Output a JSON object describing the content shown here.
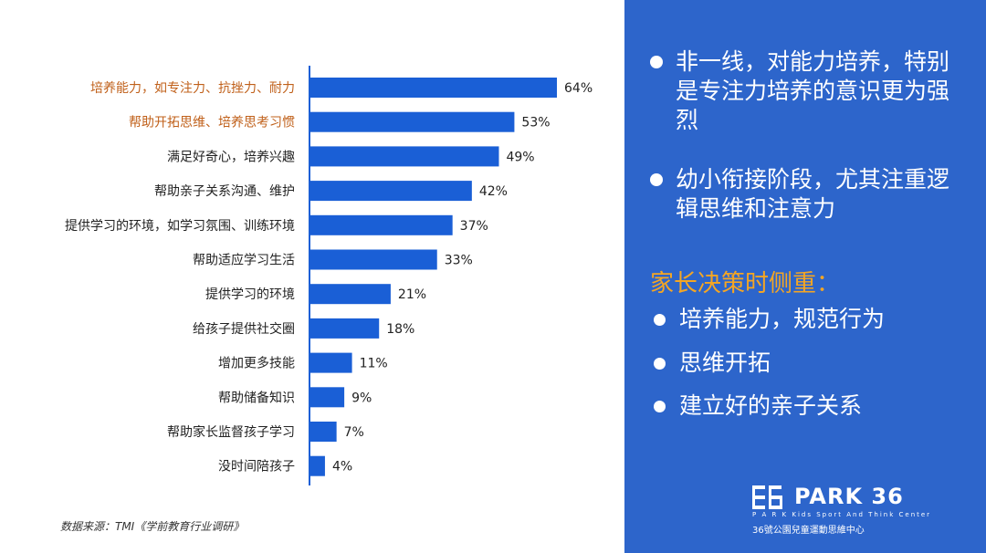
{
  "chart_data": {
    "type": "bar",
    "orientation": "horizontal",
    "categories": [
      "培养能力，如专注力、抗挫力、耐力",
      "帮助开拓思维、培养思考习惯",
      "满足好奇心，培养兴趣",
      "帮助亲子关系沟通、维护",
      "提供学习的环境，如学习氛围、训练环境",
      "帮助适应学习生活",
      "提供学习的环境",
      "给孩子提供社交圈",
      "增加更多技能",
      "帮助储备知识",
      "帮助家长监督孩子学习",
      "没时间陪孩子"
    ],
    "values": [
      64,
      53,
      49,
      42,
      37,
      33,
      21,
      18,
      11,
      9,
      7,
      4
    ],
    "value_labels": [
      "64%",
      "53%",
      "49%",
      "42%",
      "37%",
      "33%",
      "21%",
      "18%",
      "11%",
      "9%",
      "7%",
      "4%"
    ],
    "highlighted_categories": [
      0,
      1
    ],
    "xlim": [
      0,
      64
    ],
    "bar_color": "#1A5FD6",
    "highlight_label_color": "#C0601A",
    "label_color": "#222222",
    "axis_color": "#1A5FD6"
  },
  "source_note": "数据来源：TMI《学前教育行业调研》",
  "panel": {
    "background": "#2D65CB",
    "bullets_top": [
      "非一线，对能力培养，特别是专注力培养的意识更为强烈",
      "幼小衔接阶段，尤其注重逻辑思维和注意力"
    ],
    "focus_title": "家长决策时侧重：",
    "focus_items": [
      "培养能力，规范行为",
      "思维开拓",
      "建立好的亲子关系"
    ]
  },
  "logo": {
    "name": "PARK 36",
    "tagline": "P A R K   Kids Sport And Think Center",
    "chinese": "36號公園兒童運動思維中心"
  }
}
